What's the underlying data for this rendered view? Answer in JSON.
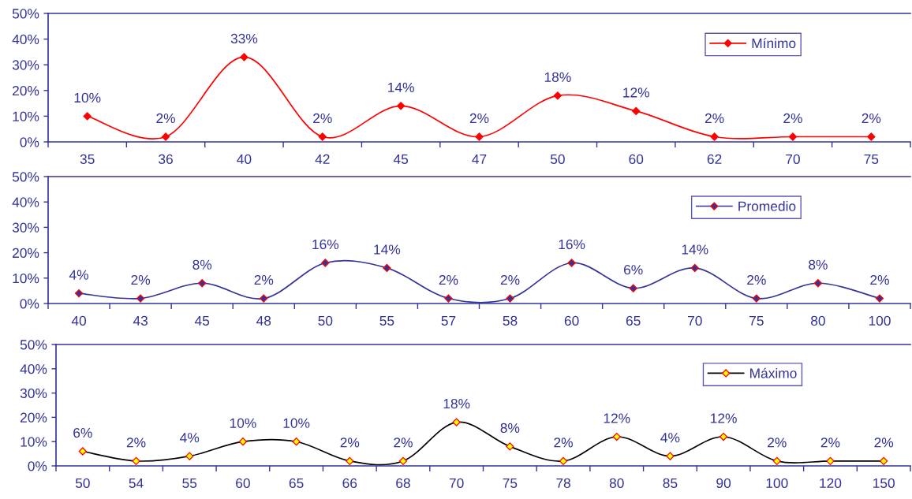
{
  "chart_data": [
    {
      "type": "line",
      "categories": [
        "35",
        "36",
        "40",
        "42",
        "45",
        "47",
        "50",
        "60",
        "62",
        "70",
        "75"
      ],
      "series": [
        {
          "name": "Mínimo",
          "color": "#ff0000",
          "colors": [
            "#ff0000",
            "#ff0000",
            "#ff0000",
            "#ff0000",
            "#ff0000",
            "#ff0000",
            "#ff0000",
            "#ff0000",
            "#ff0000",
            "#ff0000",
            "#ff0000"
          ],
          "values": [
            10,
            2,
            33,
            2,
            14,
            2,
            18,
            12,
            2,
            2,
            2
          ],
          "value_labels": [
            "10%",
            "2%",
            "33%",
            "2%",
            "14%",
            "2%",
            "18%",
            "12%",
            "2%",
            "2%",
            "2%"
          ]
        }
      ],
      "ylim": [
        0,
        50
      ],
      "yticks": [
        {
          "value": 0,
          "label": "0%"
        },
        {
          "value": 10,
          "label": "10%"
        },
        {
          "value": 20,
          "label": "20%"
        },
        {
          "value": 30,
          "label": "30%"
        },
        {
          "value": 40,
          "label": "40%"
        },
        {
          "value": 50,
          "label": "50%"
        }
      ],
      "legend": "top right",
      "marker": "diamond"
    },
    {
      "type": "line",
      "categories": [
        "40",
        "43",
        "45",
        "48",
        "50",
        "55",
        "57",
        "58",
        "60",
        "65",
        "70",
        "75",
        "80",
        "100"
      ],
      "series": [
        {
          "name": "Promedio",
          "color": "#333399",
          "colors": [
            "#333399",
            "#333399",
            "#333399",
            "#333399",
            "#333399",
            "#333399",
            "#333399",
            "#333399",
            "#333399",
            "#333399",
            "#333399",
            "#333399",
            "#333399",
            "#333399"
          ],
          "values": [
            4,
            2,
            8,
            2,
            16,
            14,
            2,
            2,
            16,
            6,
            14,
            2,
            8,
            2
          ],
          "value_labels": [
            "4%",
            "2%",
            "8%",
            "2%",
            "16%",
            "14%",
            "2%",
            "2%",
            "16%",
            "6%",
            "14%",
            "2%",
            "8%",
            "2%"
          ]
        }
      ],
      "ylim": [
        0,
        50
      ],
      "yticks": [
        {
          "value": 0,
          "label": "0%"
        },
        {
          "value": 10,
          "label": "10%"
        },
        {
          "value": 20,
          "label": "20%"
        },
        {
          "value": 30,
          "label": "30%"
        },
        {
          "value": 40,
          "label": "40%"
        },
        {
          "value": 50,
          "label": "50%"
        }
      ],
      "legend": "top right",
      "marker": "diamond"
    },
    {
      "type": "line",
      "categories": [
        "50",
        "54",
        "55",
        "60",
        "65",
        "66",
        "68",
        "70",
        "75",
        "78",
        "80",
        "85",
        "90",
        "100",
        "120",
        "150"
      ],
      "series": [
        {
          "name": "Máximo",
          "color": "#000000",
          "colors": [
            "#ffff00",
            "#ffff00",
            "#ffff00",
            "#ffff00",
            "#ffff00",
            "#ffff00",
            "#ffff00",
            "#ffff00",
            "#ffff00",
            "#ffff00",
            "#ffff00",
            "#ffff00",
            "#ffff00",
            "#ffff00",
            "#ffff00",
            "#ffff00"
          ],
          "values": [
            6,
            2,
            4,
            10,
            10,
            2,
            2,
            18,
            8,
            2,
            12,
            4,
            12,
            2,
            2,
            2
          ],
          "value_labels": [
            "6%",
            "2%",
            "4%",
            "10%",
            "10%",
            "2%",
            "2%",
            "18%",
            "8%",
            "2%",
            "12%",
            "4%",
            "12%",
            "2%",
            "2%",
            "2%"
          ]
        }
      ],
      "ylim": [
        0,
        50
      ],
      "yticks": [
        {
          "value": 0,
          "label": "0%"
        },
        {
          "value": 10,
          "label": "10%"
        },
        {
          "value": 20,
          "label": "20%"
        },
        {
          "value": 30,
          "label": "30%"
        },
        {
          "value": 40,
          "label": "40%"
        },
        {
          "value": 50,
          "label": "50%"
        }
      ],
      "legend": "top right",
      "marker": "diamond"
    }
  ]
}
